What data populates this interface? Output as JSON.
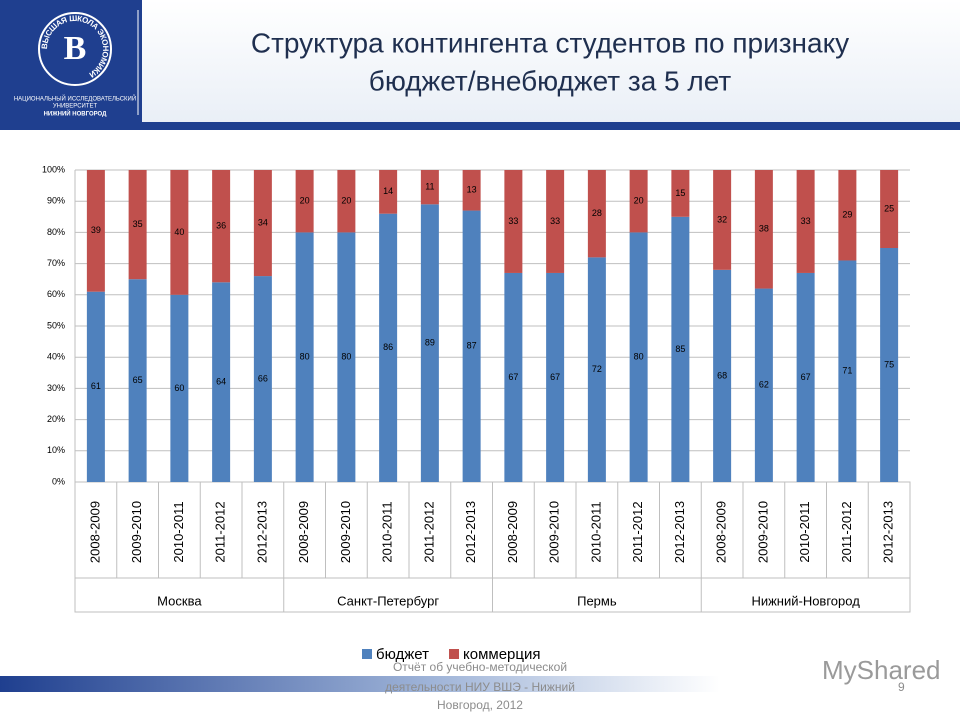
{
  "header": {
    "title_lines": [
      "Структура контингента студентов по признаку",
      "бюджет/внебюджет за 5 лет"
    ],
    "logo_ring": "ВЫСШАЯ ШКОЛА ЭКОНОМИКИ",
    "logo_lines": [
      "НАЦИОНАЛЬНЫЙ ИССЛЕДОВАТЕЛЬСКИЙ",
      "УНИВЕРСИТЕТ",
      "НИЖНИЙ НОВГОРОД"
    ]
  },
  "chart_data": {
    "type": "bar",
    "stacked": true,
    "groups": [
      {
        "name": "Москва",
        "categories": [
          "2008-2009",
          "2009-2010",
          "2010-2011",
          "2011-2012",
          "2012-2013"
        ]
      },
      {
        "name": "Санкт-Петербург",
        "categories": [
          "2008-2009",
          "2009-2010",
          "2010-2011",
          "2011-2012",
          "2012-2013"
        ]
      },
      {
        "name": "Пермь",
        "categories": [
          "2008-2009",
          "2009-2010",
          "2010-2011",
          "2011-2012",
          "2012-2013"
        ]
      },
      {
        "name": "Нижний-Новгород",
        "categories": [
          "2008-2009",
          "2009-2010",
          "2010-2011",
          "2011-2012",
          "2012-2013"
        ]
      }
    ],
    "series": [
      {
        "name": "бюджет",
        "color": "#4f81bd",
        "values": [
          61,
          65,
          60,
          64,
          66,
          80,
          80,
          86,
          89,
          87,
          67,
          67,
          72,
          80,
          85,
          68,
          62,
          67,
          71,
          75
        ]
      },
      {
        "name": "коммерция",
        "color": "#c0504d",
        "values": [
          39,
          35,
          40,
          36,
          34,
          20,
          20,
          14,
          11,
          13,
          33,
          33,
          28,
          20,
          15,
          32,
          38,
          33,
          29,
          25
        ]
      }
    ],
    "ylim": [
      0,
      100
    ],
    "yticks": [
      {
        "value": 0,
        "label": "0%"
      },
      {
        "value": 10,
        "label": "10%"
      },
      {
        "value": 20,
        "label": "20%"
      },
      {
        "value": 30,
        "label": "30%"
      },
      {
        "value": 40,
        "label": "40%"
      },
      {
        "value": 50,
        "label": "50%"
      },
      {
        "value": 60,
        "label": "60%"
      },
      {
        "value": 70,
        "label": "70%"
      },
      {
        "value": 80,
        "label": "80%"
      },
      {
        "value": 90,
        "label": "90%"
      },
      {
        "value": 100,
        "label": "100%"
      }
    ],
    "grid": true,
    "legend": "bottom"
  },
  "footer": {
    "lines": [
      "Отчёт об учебно-методической",
      "деятельности НИУ ВШЭ - Нижний",
      "Новгород, 2012"
    ],
    "page": "9",
    "watermark": "MyShared"
  }
}
